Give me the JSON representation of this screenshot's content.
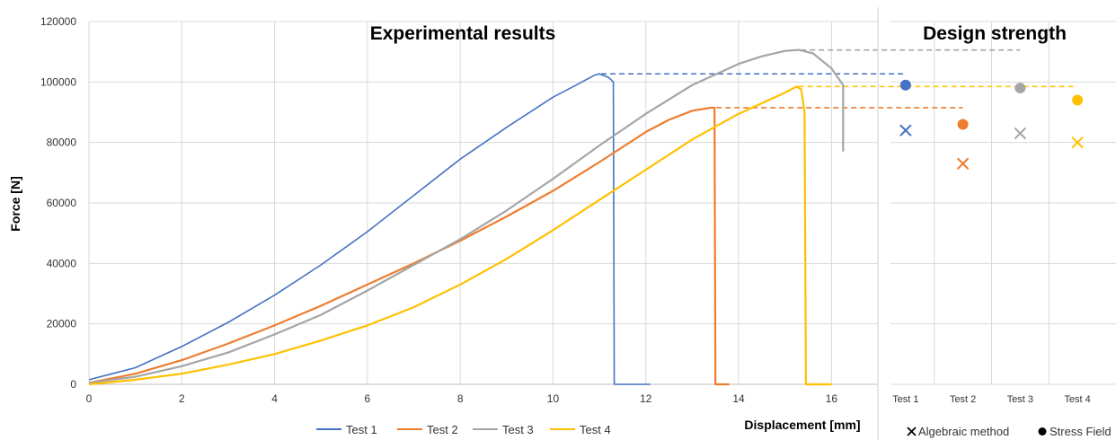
{
  "chart_data": [
    {
      "type": "line",
      "title": "Experimental results",
      "xlabel": "Displacement [mm]",
      "ylabel": "Force [N]",
      "xlim": [
        0,
        17
      ],
      "ylim": [
        0,
        120000
      ],
      "x_ticks": [
        "0",
        "2",
        "4",
        "6",
        "8",
        "10",
        "12",
        "14",
        "16"
      ],
      "y_ticks": [
        "0",
        "20000",
        "40000",
        "60000",
        "80000",
        "100000",
        "120000"
      ],
      "grid": true,
      "legend_position": "bottom",
      "series": [
        {
          "name": "Test 1",
          "color": "#4472C4",
          "points": [
            [
              0,
              1500
            ],
            [
              1,
              5500
            ],
            [
              2,
              12500
            ],
            [
              3,
              20500
            ],
            [
              4,
              29500
            ],
            [
              5,
              39500
            ],
            [
              6,
              50500
            ],
            [
              7,
              62500
            ],
            [
              8,
              74500
            ],
            [
              9,
              85000
            ],
            [
              10,
              95000
            ],
            [
              10.5,
              99000
            ],
            [
              10.9,
              102300
            ],
            [
              11.0,
              102700
            ],
            [
              11.2,
              101500
            ],
            [
              11.3,
              100000
            ],
            [
              11.32,
              0
            ],
            [
              12.1,
              0
            ]
          ],
          "peak": 102700
        },
        {
          "name": "Test 2",
          "color": "#ED7D31",
          "points": [
            [
              0,
              500
            ],
            [
              1,
              3500
            ],
            [
              2,
              8000
            ],
            [
              3,
              13500
            ],
            [
              4,
              19500
            ],
            [
              5,
              26000
            ],
            [
              6,
              33000
            ],
            [
              7,
              40000
            ],
            [
              8,
              47500
            ],
            [
              9,
              55500
            ],
            [
              10,
              64000
            ],
            [
              11,
              73500
            ],
            [
              12,
              83500
            ],
            [
              12.5,
              87500
            ],
            [
              13,
              90500
            ],
            [
              13.4,
              91500
            ],
            [
              13.48,
              91500
            ],
            [
              13.5,
              0
            ],
            [
              13.8,
              0
            ]
          ],
          "peak": 91500
        },
        {
          "name": "Test 3",
          "color": "#A5A5A5",
          "points": [
            [
              0,
              500
            ],
            [
              1,
              2500
            ],
            [
              2,
              6000
            ],
            [
              3,
              10500
            ],
            [
              4,
              16500
            ],
            [
              5,
              23000
            ],
            [
              6,
              31000
            ],
            [
              7,
              39500
            ],
            [
              8,
              48000
            ],
            [
              9,
              57500
            ],
            [
              10,
              68000
            ],
            [
              11,
              79000
            ],
            [
              12,
              89500
            ],
            [
              13,
              99000
            ],
            [
              14,
              106000
            ],
            [
              14.5,
              108500
            ],
            [
              15,
              110300
            ],
            [
              15.3,
              110600
            ],
            [
              15.6,
              109500
            ],
            [
              16.0,
              104500
            ],
            [
              16.25,
              99000
            ],
            [
              16.25,
              77000
            ]
          ],
          "peak": 110600
        },
        {
          "name": "Test 4",
          "color": "#FFC000",
          "points": [
            [
              0,
              0
            ],
            [
              1,
              1500
            ],
            [
              2,
              3500
            ],
            [
              3,
              6500
            ],
            [
              4,
              10000
            ],
            [
              5,
              14500
            ],
            [
              6,
              19500
            ],
            [
              7,
              25500
            ],
            [
              8,
              33000
            ],
            [
              9,
              41500
            ],
            [
              10,
              51000
            ],
            [
              11,
              61000
            ],
            [
              12,
              71000
            ],
            [
              13,
              81000
            ],
            [
              14,
              89500
            ],
            [
              15,
              96500
            ],
            [
              15.25,
              98500
            ],
            [
              15.35,
              97500
            ],
            [
              15.42,
              90000
            ],
            [
              15.45,
              0
            ],
            [
              16.0,
              0
            ]
          ],
          "peak": 98500
        }
      ]
    },
    {
      "type": "scatter",
      "title": "Design strength",
      "categories": [
        "Test 1",
        "Test 2",
        "Test 3",
        "Test 4"
      ],
      "ylim": [
        0,
        120000
      ],
      "legend_position": "bottom",
      "legend": [
        "Algebraic method",
        "Stress Field"
      ],
      "series": [
        {
          "name": "Algebraic method",
          "marker": "x",
          "values": [
            84000,
            73000,
            83000,
            80000
          ]
        },
        {
          "name": "Stress Field",
          "marker": "circle",
          "values": [
            99000,
            86000,
            98000,
            94000
          ]
        }
      ],
      "colors": [
        "#4472C4",
        "#ED7D31",
        "#A5A5A5",
        "#FFC000"
      ]
    }
  ]
}
